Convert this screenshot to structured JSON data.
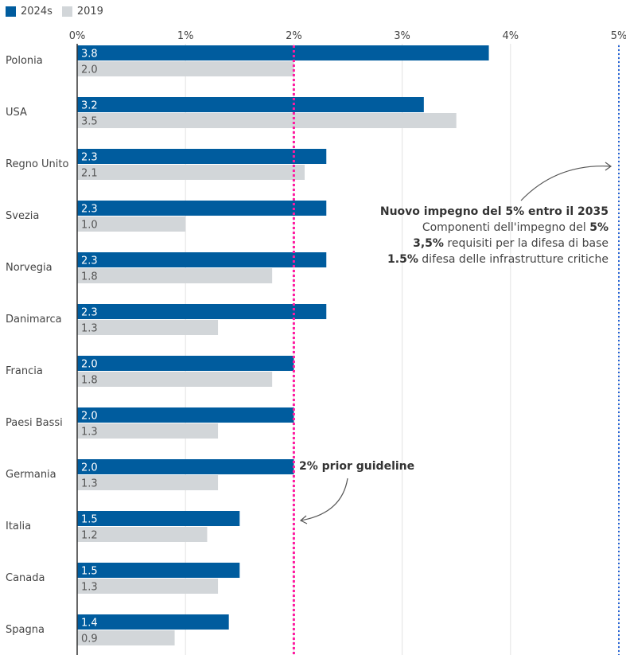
{
  "chart_data": {
    "type": "bar",
    "orientation": "horizontal",
    "categories": [
      "Polonia",
      "USA",
      "Regno Unito",
      "Svezia",
      "Norvegia",
      "Danimarca",
      "Francia",
      "Paesi Bassi",
      "Germania",
      "Italia",
      "Canada",
      "Spagna"
    ],
    "series": [
      {
        "name": "2024s",
        "color": "#005c9e",
        "values": [
          3.8,
          3.2,
          2.3,
          2.3,
          2.3,
          2.3,
          2.0,
          2.0,
          2.0,
          1.5,
          1.5,
          1.4
        ]
      },
      {
        "name": "2019",
        "color": "#d2d6d9",
        "values": [
          2.0,
          3.5,
          2.1,
          1.0,
          1.8,
          1.3,
          1.8,
          1.3,
          1.3,
          1.2,
          1.3,
          0.9
        ]
      }
    ],
    "xlim": [
      0,
      5
    ],
    "xticks": [
      "0%",
      "1%",
      "2%",
      "3%",
      "4%",
      "5%"
    ],
    "grid": true,
    "legend": "top-left",
    "reference_lines": [
      {
        "value": 2,
        "color": "#ff1aa0",
        "label": "2% prior guideline"
      },
      {
        "value": 5,
        "color": "#2563d6"
      }
    ],
    "annotation": {
      "title": "Nuovo impegno del 5% entro il 2035",
      "line1_text": "Componenti dell'impegno del ",
      "line1_bold": "5%",
      "line2_bold": "3,5%",
      "line2_text": " requisiti per la difesa di base",
      "line3_bold": "1.5%",
      "line3_text": " difesa delle infrastrutture critiche"
    }
  }
}
